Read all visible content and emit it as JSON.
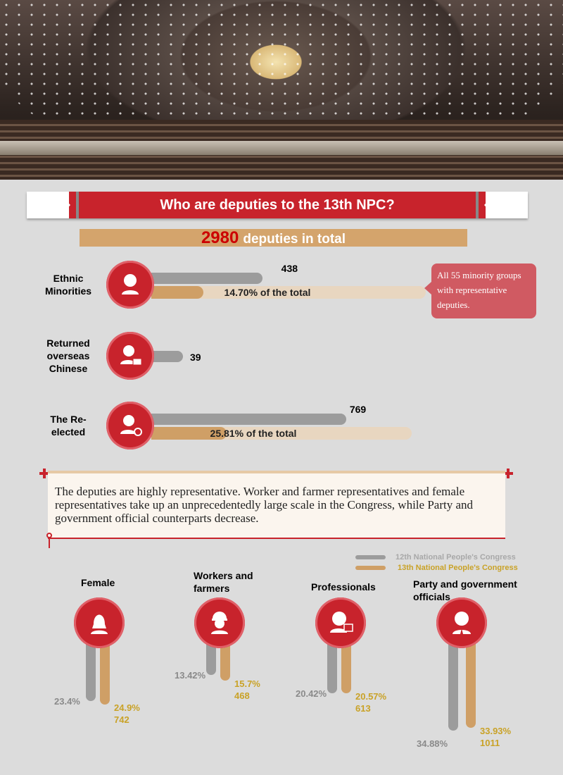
{
  "banner": {
    "title": "Who are deputies to the 13th NPC?"
  },
  "total": {
    "number": "2980",
    "label": "deputies in total"
  },
  "rows": [
    {
      "label": "Ethnic Minorities",
      "icon": "person-icon",
      "value": 438,
      "value_text": "438",
      "share": 14.7,
      "share_text": "14.70% of the total"
    },
    {
      "label": "Returned overseas Chinese",
      "icon": "person-house-icon",
      "value": 39,
      "value_text": "39"
    },
    {
      "label": "The Re-elected",
      "icon": "person-refresh-icon",
      "value": 769,
      "value_text": "769",
      "share": 25.81,
      "share_text": "25.81% of the total"
    }
  ],
  "callout": "All 55 minority groups with representative deputies.",
  "note": "The deputies are highly representative. Worker and farmer representatives and female representatives take up an unprecedentedly large scale in the Congress, while Party and government official counterparts decrease.",
  "colors": {
    "red": "#c8232c",
    "gray": "#9c9c9c",
    "tan": "#cf9f66",
    "gold_text": "#c9a227"
  },
  "chart_data": {
    "type": "bar",
    "legend": {
      "placement": "top-right",
      "entries": [
        "12th National People's Congress",
        "13th National People's Congress"
      ]
    },
    "categories": [
      "Female",
      "Workers and farmers",
      "Professionals",
      "Party and government officials"
    ],
    "icons": [
      "female-icon",
      "worker-helmet-icon",
      "professional-computer-icon",
      "official-tie-icon"
    ],
    "series": [
      {
        "name": "12th National People's Congress",
        "values": [
          23.4,
          13.42,
          20.42,
          34.88
        ],
        "labels": [
          "23.4%",
          "13.42%",
          "20.42%",
          "34.88%"
        ]
      },
      {
        "name": "13th National People's Congress",
        "values": [
          24.9,
          15.7,
          20.57,
          33.93
        ],
        "labels": [
          "24.9%",
          "15.7%",
          "20.57%",
          "33.93%"
        ],
        "counts": [
          "742",
          "468",
          "613",
          "1011"
        ]
      }
    ]
  }
}
